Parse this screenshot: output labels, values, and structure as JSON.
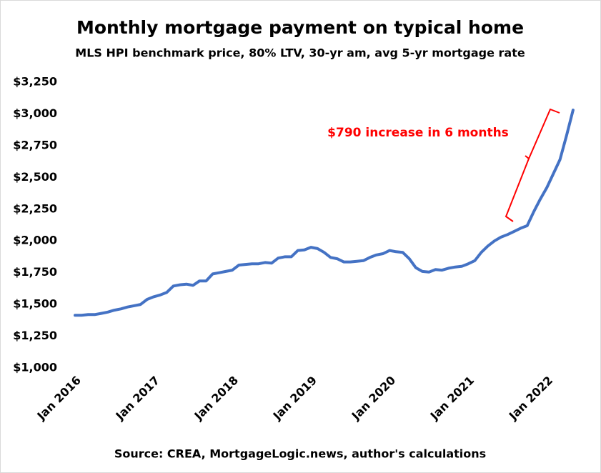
{
  "chart_data": {
    "type": "line",
    "title": "Monthly mortgage payment on typical home",
    "subtitle": "MLS HPI benchmark price, 80% LTV, 30-yr am, avg 5-yr mortgage rate",
    "source": "Source: CREA, MortgageLogic.news, author's calculations",
    "annotation": "$790 increase in 6 months",
    "categories": [
      "Jan 2016",
      null,
      null,
      null,
      null,
      null,
      null,
      null,
      null,
      null,
      null,
      null,
      "Jan 2017",
      null,
      null,
      null,
      null,
      null,
      null,
      null,
      null,
      null,
      null,
      null,
      "Jan 2018",
      null,
      null,
      null,
      null,
      null,
      null,
      null,
      null,
      null,
      null,
      null,
      "Jan 2019",
      null,
      null,
      null,
      null,
      null,
      null,
      null,
      null,
      null,
      null,
      null,
      "Jan 2020",
      null,
      null,
      null,
      null,
      null,
      null,
      null,
      null,
      null,
      null,
      null,
      "Jan 2021",
      null,
      null,
      null,
      null,
      null,
      null,
      null,
      null,
      null,
      null,
      null,
      "Jan 2022",
      null,
      null,
      null,
      null
    ],
    "series": [
      {
        "color": "#4472c4",
        "values": [
          1415,
          1415,
          1420,
          1420,
          1430,
          1440,
          1455,
          1465,
          1480,
          1490,
          1500,
          1540,
          1560,
          1575,
          1595,
          1645,
          1655,
          1660,
          1650,
          1685,
          1685,
          1740,
          1750,
          1760,
          1770,
          1810,
          1815,
          1820,
          1820,
          1830,
          1825,
          1865,
          1875,
          1875,
          1925,
          1930,
          1950,
          1940,
          1910,
          1870,
          1860,
          1835,
          1835,
          1840,
          1845,
          1870,
          1890,
          1900,
          1925,
          1915,
          1910,
          1860,
          1790,
          1760,
          1755,
          1775,
          1770,
          1785,
          1795,
          1800,
          1820,
          1845,
          1910,
          1960,
          2000,
          2030,
          2050,
          2075,
          2100,
          2120,
          2230,
          2330,
          2420,
          2530,
          2640,
          2830,
          3030
        ]
      }
    ],
    "ylim": [
      1000,
      3250
    ],
    "yticks": [
      {
        "value": 1000,
        "label": "$1,000"
      },
      {
        "value": 1250,
        "label": "$1,250"
      },
      {
        "value": 1500,
        "label": "$1,500"
      },
      {
        "value": 1750,
        "label": "$1,750"
      },
      {
        "value": 2000,
        "label": "$2,000"
      },
      {
        "value": 2250,
        "label": "$2,250"
      },
      {
        "value": 2500,
        "label": "$2,500"
      },
      {
        "value": 2750,
        "label": "$2,750"
      },
      {
        "value": 3000,
        "label": "$3,000"
      },
      {
        "value": 3250,
        "label": "$3,250"
      }
    ],
    "grid": false
  }
}
